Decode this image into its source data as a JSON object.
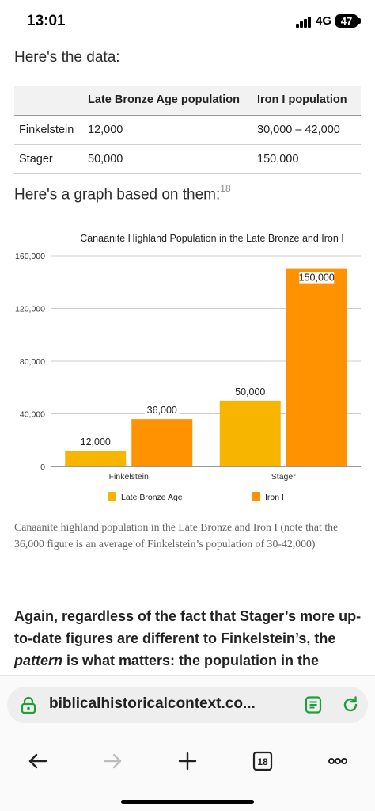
{
  "status_bar": {
    "time": "13:01",
    "network": "4G",
    "battery": "47"
  },
  "headings": {
    "data": "Here's the data:",
    "graph": "Here's a graph based on them:",
    "graph_footnote": "18"
  },
  "table": {
    "headers": [
      "",
      "Late Bronze Age population",
      "Iron I population"
    ],
    "rows": [
      [
        "Finkelstein",
        "12,000",
        "30,000 – 42,000"
      ],
      [
        "Stager",
        "50,000",
        "150,000"
      ]
    ]
  },
  "chart_data": {
    "type": "bar",
    "title": "Canaanite Highland Population in the Late Bronze and Iron I",
    "categories": [
      "Finkelstein",
      "Stager"
    ],
    "series": [
      {
        "name": "Late Bronze Age",
        "values": [
          12000,
          50000
        ],
        "labels": [
          "12,000",
          "50,000"
        ],
        "color": "#f7b500"
      },
      {
        "name": "Iron I",
        "values": [
          36000,
          150000
        ],
        "labels": [
          "36,000",
          "150,000"
        ],
        "color": "#ff9200"
      }
    ],
    "ylim": [
      0,
      160000
    ],
    "yticks": [
      0,
      40000,
      80000,
      120000,
      160000
    ],
    "ytick_labels": [
      "0",
      "40,000",
      "80,000",
      "120,000",
      "160,000"
    ],
    "grid": true,
    "legend": "bottom",
    "xlabel": "",
    "ylabel": ""
  },
  "caption": "Canaanite highland population in the Late Bronze and Iron I (note that the 36,000 figure is an average of Finkelstein’s population of 30-42,000)",
  "body": {
    "part1": "Again, regardless of the fact that Stager’s more up-to-date figures are different to Finkelstein’s, the ",
    "emphasis": "pattern",
    "part2": " is what matters: the population in the"
  },
  "browser": {
    "url": "biblicalhistoricalcontext.co...",
    "tab_count": "18"
  }
}
